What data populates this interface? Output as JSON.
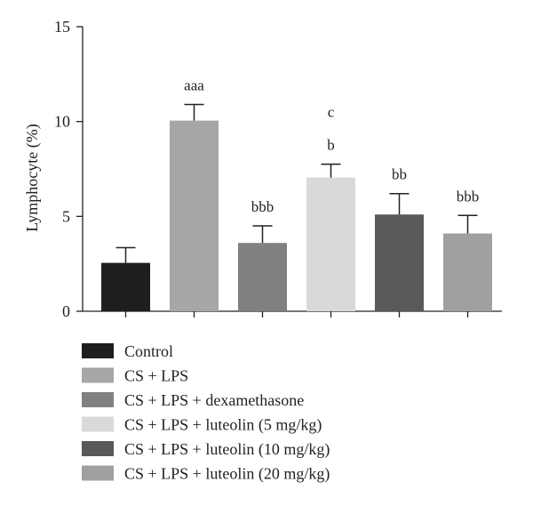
{
  "chart_data": {
    "type": "bar",
    "ylabel": "Lymphocyte (%)",
    "xlabel": "",
    "ylim": [
      0,
      15
    ],
    "yticks": [
      0,
      5,
      10,
      15
    ],
    "categories": [
      "Control",
      "CS + LPS",
      "CS + LPS + dexamethasone",
      "CS + LPS + luteolin (5 mg/kg)",
      "CS + LPS + luteolin (10 mg/kg)",
      "CS + LPS + luteolin (20 mg/kg)"
    ],
    "values": [
      2.55,
      10.05,
      3.6,
      7.05,
      5.1,
      4.1
    ],
    "errors": [
      0.8,
      0.85,
      0.9,
      0.7,
      1.1,
      0.95
    ],
    "colors": [
      "#1e1e1e",
      "#a6a6a6",
      "#808080",
      "#d9d9d9",
      "#595959",
      "#a0a0a0"
    ],
    "annotations": [
      [],
      [
        "aaa"
      ],
      [
        "bbb"
      ],
      [
        "b",
        "c"
      ],
      [
        "bb"
      ],
      [
        "bbb"
      ]
    ],
    "legend": "bottom",
    "grid": false
  }
}
